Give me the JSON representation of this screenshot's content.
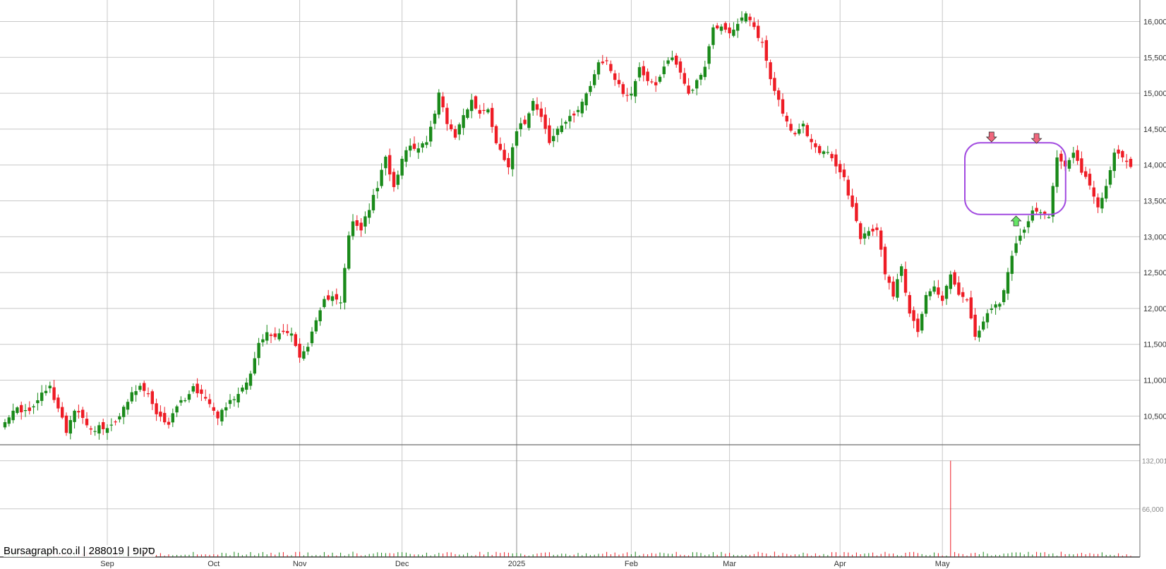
{
  "watermark": "Bursagraph.co.il | 288019 | סקופ",
  "colors": {
    "up": "#1a8a1a",
    "down": "#ee1c25",
    "grid": "#c8c8c8",
    "separator": "#6e6e6e",
    "ellipse": "#a24be0",
    "arrow_down": "#f0677d",
    "arrow_up": "#66e666"
  },
  "chart_data": {
    "type": "candlestick",
    "price_axis": {
      "ylim": [
        10100,
        16300
      ],
      "ticks": [
        10500,
        11000,
        11500,
        12000,
        12500,
        13000,
        13500,
        14000,
        14500,
        15000,
        15500,
        16000
      ],
      "tick_labels": [
        "10,500",
        "11,000",
        "11,500",
        "12,000",
        "12,500",
        "13,000",
        "13,500",
        "14,000",
        "14,500",
        "15,000",
        "15,500",
        "16,000"
      ]
    },
    "volume_axis": {
      "ylim": [
        0,
        150000
      ],
      "ticks": [
        66000,
        132001
      ],
      "tick_labels": [
        "66,000",
        "132,001"
      ]
    },
    "x_axis": {
      "labels": [
        "Sep",
        "Oct",
        "Nov",
        "Dec",
        "2025",
        "Feb",
        "Mar",
        "Apr",
        "May"
      ],
      "label_bar_index": [
        25,
        51,
        72,
        97,
        125,
        153,
        177,
        204,
        229
      ]
    },
    "volume_spike": {
      "bar": 231,
      "value": 132001,
      "color": "down"
    },
    "pattern": {
      "shape": "rounded-rectangle",
      "from_bar": 235,
      "to_bar": 256,
      "price_top": 14250,
      "price_bottom": 13330
    },
    "arrows": [
      {
        "bar": 241,
        "direction": "down",
        "price": 14390
      },
      {
        "bar": 252,
        "direction": "down",
        "price": 14370
      },
      {
        "bar": 247,
        "direction": "up",
        "price": 13220
      }
    ],
    "anchors": [
      [
        0,
        10450
      ],
      [
        3,
        10600
      ],
      [
        6,
        10550
      ],
      [
        9,
        10800
      ],
      [
        11,
        10900
      ],
      [
        13,
        10600
      ],
      [
        15,
        10300
      ],
      [
        17,
        10600
      ],
      [
        19,
        10500
      ],
      [
        21,
        10300
      ],
      [
        23,
        10350
      ],
      [
        25,
        10300
      ],
      [
        27,
        10450
      ],
      [
        29,
        10600
      ],
      [
        31,
        10800
      ],
      [
        33,
        10900
      ],
      [
        35,
        10800
      ],
      [
        37,
        10500
      ],
      [
        40,
        10400
      ],
      [
        42,
        10650
      ],
      [
        44,
        10750
      ],
      [
        46,
        10900
      ],
      [
        48,
        10800
      ],
      [
        50,
        10700
      ],
      [
        52,
        10500
      ],
      [
        54,
        10650
      ],
      [
        56,
        10750
      ],
      [
        58,
        10900
      ],
      [
        60,
        11100
      ],
      [
        62,
        11500
      ],
      [
        64,
        11650
      ],
      [
        66,
        11600
      ],
      [
        68,
        11700
      ],
      [
        70,
        11650
      ],
      [
        72,
        11300
      ],
      [
        74,
        11500
      ],
      [
        76,
        11800
      ],
      [
        78,
        12100
      ],
      [
        80,
        12200
      ],
      [
        82,
        12100
      ],
      [
        84,
        13000
      ],
      [
        85,
        13200
      ],
      [
        87,
        13100
      ],
      [
        89,
        13400
      ],
      [
        91,
        13700
      ],
      [
        93,
        14100
      ],
      [
        95,
        13700
      ],
      [
        97,
        14100
      ],
      [
        99,
        14300
      ],
      [
        101,
        14200
      ],
      [
        103,
        14350
      ],
      [
        105,
        14700
      ],
      [
        106,
        15000
      ],
      [
        108,
        14600
      ],
      [
        110,
        14400
      ],
      [
        112,
        14700
      ],
      [
        114,
        14900
      ],
      [
        116,
        14700
      ],
      [
        118,
        14800
      ],
      [
        120,
        14300
      ],
      [
        122,
        14100
      ],
      [
        123,
        14000
      ],
      [
        125,
        14500
      ],
      [
        127,
        14600
      ],
      [
        129,
        14900
      ],
      [
        131,
        14700
      ],
      [
        133,
        14300
      ],
      [
        135,
        14500
      ],
      [
        137,
        14600
      ],
      [
        139,
        14700
      ],
      [
        141,
        14900
      ],
      [
        143,
        15100
      ],
      [
        145,
        15400
      ],
      [
        147,
        15450
      ],
      [
        149,
        15200
      ],
      [
        151,
        15000
      ],
      [
        153,
        15000
      ],
      [
        155,
        15350
      ],
      [
        157,
        15200
      ],
      [
        159,
        15100
      ],
      [
        161,
        15400
      ],
      [
        163,
        15500
      ],
      [
        165,
        15300
      ],
      [
        167,
        15000
      ],
      [
        169,
        15150
      ],
      [
        171,
        15400
      ],
      [
        173,
        15900
      ],
      [
        175,
        15950
      ],
      [
        177,
        15850
      ],
      [
        179,
        15950
      ],
      [
        181,
        16100
      ],
      [
        183,
        15900
      ],
      [
        185,
        15700
      ],
      [
        187,
        15200
      ],
      [
        189,
        14900
      ],
      [
        191,
        14600
      ],
      [
        193,
        14400
      ],
      [
        195,
        14550
      ],
      [
        197,
        14300
      ],
      [
        199,
        14200
      ],
      [
        201,
        14150
      ],
      [
        203,
        14000
      ],
      [
        205,
        13800
      ],
      [
        207,
        13400
      ],
      [
        209,
        13000
      ],
      [
        211,
        13050
      ],
      [
        213,
        13100
      ],
      [
        215,
        12500
      ],
      [
        217,
        12200
      ],
      [
        219,
        12600
      ],
      [
        221,
        11900
      ],
      [
        223,
        11700
      ],
      [
        225,
        12200
      ],
      [
        227,
        12300
      ],
      [
        229,
        12100
      ],
      [
        231,
        12500
      ],
      [
        233,
        12200
      ],
      [
        235,
        12100
      ],
      [
        237,
        11600
      ],
      [
        239,
        11800
      ],
      [
        241,
        12000
      ],
      [
        243,
        12050
      ],
      [
        245,
        12500
      ],
      [
        247,
        12900
      ],
      [
        249,
        13100
      ],
      [
        251,
        13400
      ],
      [
        253,
        13350
      ],
      [
        255,
        13300
      ],
      [
        257,
        14100
      ],
      [
        259,
        14000
      ],
      [
        261,
        14200
      ],
      [
        263,
        13900
      ],
      [
        265,
        13700
      ],
      [
        267,
        13400
      ],
      [
        269,
        13700
      ],
      [
        271,
        14200
      ],
      [
        273,
        14100
      ],
      [
        275,
        13950
      ]
    ]
  }
}
